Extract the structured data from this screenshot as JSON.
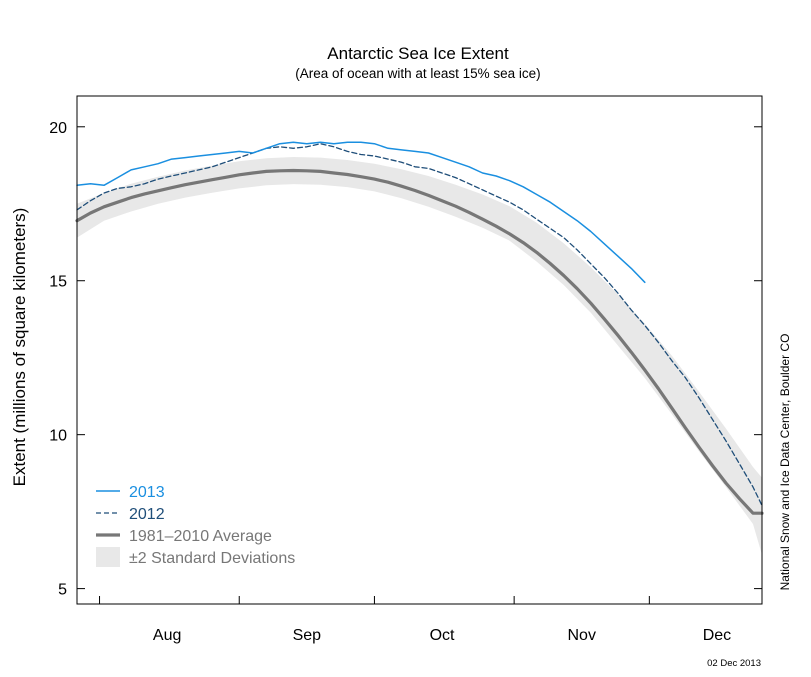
{
  "chart_data": {
    "type": "line",
    "title": "Antarctic Sea Ice Extent",
    "subtitle": "(Area of ocean with at least 15% sea ice)",
    "ylabel": "Extent (millions of square kilometers)",
    "xlabel": "",
    "ylim": [
      4.5,
      21
    ],
    "yticks": [
      5,
      10,
      15,
      20
    ],
    "ytick_labels": [
      "5",
      "10",
      "15",
      "20"
    ],
    "xlim": [
      "Jul 27",
      "Dec 26"
    ],
    "month_boundaries": [
      "Aug 1",
      "Sep 1",
      "Oct 1",
      "Nov 1",
      "Dec 1"
    ],
    "months": [
      {
        "label": "Aug",
        "center": "Aug 16"
      },
      {
        "label": "Sep",
        "center": "Sep 16"
      },
      {
        "label": "Oct",
        "center": "Oct 16"
      },
      {
        "label": "Nov",
        "center": "Nov 16"
      },
      {
        "label": "Dec",
        "center": "Dec 16"
      }
    ],
    "grid": false,
    "legend_position": "bottom-left",
    "series": [
      {
        "name": "2013",
        "color": "#1a8fe0",
        "style": "solid",
        "x": [
          "Jul 27",
          "Jul 30",
          "Aug 2",
          "Aug 5",
          "Aug 8",
          "Aug 11",
          "Aug 14",
          "Aug 17",
          "Aug 20",
          "Aug 23",
          "Aug 26",
          "Aug 29",
          "Sep 1",
          "Sep 4",
          "Sep 7",
          "Sep 10",
          "Sep 13",
          "Sep 16",
          "Sep 19",
          "Sep 22",
          "Sep 25",
          "Sep 28",
          "Oct 1",
          "Oct 4",
          "Oct 7",
          "Oct 10",
          "Oct 13",
          "Oct 16",
          "Oct 19",
          "Oct 22",
          "Oct 25",
          "Oct 28",
          "Oct 31",
          "Nov 3",
          "Nov 6",
          "Nov 9",
          "Nov 12",
          "Nov 15",
          "Nov 18",
          "Nov 21",
          "Nov 24",
          "Nov 27",
          "Nov 30"
        ],
        "values": [
          18.1,
          18.15,
          18.1,
          18.35,
          18.6,
          18.7,
          18.8,
          18.95,
          19.0,
          19.05,
          19.1,
          19.15,
          19.2,
          19.15,
          19.3,
          19.45,
          19.5,
          19.45,
          19.5,
          19.45,
          19.5,
          19.5,
          19.45,
          19.3,
          19.25,
          19.2,
          19.15,
          19.0,
          18.85,
          18.7,
          18.5,
          18.4,
          18.25,
          18.05,
          17.8,
          17.55,
          17.25,
          16.95,
          16.6,
          16.2,
          15.8,
          15.4,
          14.95
        ]
      },
      {
        "name": "2012",
        "color": "#1f4e79",
        "style": "dashed",
        "x": [
          "Jul 27",
          "Jul 30",
          "Aug 2",
          "Aug 5",
          "Aug 8",
          "Aug 11",
          "Aug 14",
          "Aug 17",
          "Aug 20",
          "Aug 23",
          "Aug 26",
          "Aug 29",
          "Sep 1",
          "Sep 4",
          "Sep 7",
          "Sep 10",
          "Sep 13",
          "Sep 16",
          "Sep 19",
          "Sep 22",
          "Sep 25",
          "Sep 28",
          "Oct 1",
          "Oct 4",
          "Oct 7",
          "Oct 10",
          "Oct 13",
          "Oct 16",
          "Oct 19",
          "Oct 22",
          "Oct 25",
          "Oct 28",
          "Oct 31",
          "Nov 3",
          "Nov 6",
          "Nov 9",
          "Nov 12",
          "Nov 15",
          "Nov 18",
          "Nov 21",
          "Nov 24",
          "Nov 27",
          "Nov 30",
          "Dec 3",
          "Dec 6",
          "Dec 9",
          "Dec 12",
          "Dec 15",
          "Dec 18",
          "Dec 21",
          "Dec 24",
          "Dec 26"
        ],
        "values": [
          17.3,
          17.6,
          17.85,
          18.0,
          18.05,
          18.15,
          18.3,
          18.4,
          18.5,
          18.6,
          18.7,
          18.85,
          19.0,
          19.15,
          19.3,
          19.35,
          19.3,
          19.35,
          19.45,
          19.35,
          19.2,
          19.1,
          19.05,
          18.95,
          18.85,
          18.7,
          18.65,
          18.5,
          18.35,
          18.15,
          17.95,
          17.75,
          17.55,
          17.3,
          17.0,
          16.7,
          16.4,
          16.0,
          15.55,
          15.1,
          14.6,
          14.05,
          13.55,
          13.0,
          12.4,
          11.85,
          11.2,
          10.5,
          9.8,
          9.05,
          8.3,
          7.7
        ]
      },
      {
        "name": "1981–2010 Average",
        "color": "#777777",
        "style": "solid-thick",
        "x": [
          "Jul 27",
          "Jul 30",
          "Aug 2",
          "Aug 5",
          "Aug 8",
          "Aug 11",
          "Aug 14",
          "Aug 17",
          "Aug 20",
          "Aug 23",
          "Aug 26",
          "Aug 29",
          "Sep 1",
          "Sep 4",
          "Sep 7",
          "Sep 10",
          "Sep 13",
          "Sep 16",
          "Sep 19",
          "Sep 22",
          "Sep 25",
          "Sep 28",
          "Oct 1",
          "Oct 4",
          "Oct 7",
          "Oct 10",
          "Oct 13",
          "Oct 16",
          "Oct 19",
          "Oct 22",
          "Oct 25",
          "Oct 28",
          "Oct 31",
          "Nov 3",
          "Nov 6",
          "Nov 9",
          "Nov 12",
          "Nov 15",
          "Nov 18",
          "Nov 21",
          "Nov 24",
          "Nov 27",
          "Nov 30",
          "Dec 3",
          "Dec 6",
          "Dec 9",
          "Dec 12",
          "Dec 15",
          "Dec 18",
          "Dec 21",
          "Dec 24",
          "Dec 26"
        ],
        "values": [
          16.95,
          17.2,
          17.4,
          17.55,
          17.7,
          17.82,
          17.92,
          18.02,
          18.12,
          18.2,
          18.28,
          18.36,
          18.44,
          18.5,
          18.55,
          18.57,
          18.58,
          18.57,
          18.55,
          18.5,
          18.45,
          18.38,
          18.3,
          18.2,
          18.07,
          17.93,
          17.77,
          17.6,
          17.42,
          17.22,
          17.0,
          16.77,
          16.52,
          16.24,
          15.92,
          15.56,
          15.17,
          14.74,
          14.27,
          13.76,
          13.23,
          12.68,
          12.1,
          11.5,
          10.86,
          10.22,
          9.6,
          9.0,
          8.43,
          7.92,
          7.45,
          7.45
        ]
      }
    ],
    "band": {
      "name": "±2 Standard Deviations",
      "color": "#e8e8e8",
      "x": [
        "Jul 27",
        "Aug 2",
        "Aug 8",
        "Aug 14",
        "Aug 20",
        "Aug 26",
        "Sep 1",
        "Sep 7",
        "Sep 13",
        "Sep 19",
        "Sep 25",
        "Oct 1",
        "Oct 7",
        "Oct 13",
        "Oct 19",
        "Oct 25",
        "Oct 31",
        "Nov 6",
        "Nov 12",
        "Nov 18",
        "Nov 24",
        "Nov 30",
        "Dec 6",
        "Dec 12",
        "Dec 18",
        "Dec 24",
        "Dec 26"
      ],
      "upper": [
        17.5,
        17.85,
        18.15,
        18.38,
        18.58,
        18.74,
        18.88,
        18.98,
        19.02,
        19.0,
        18.92,
        18.8,
        18.62,
        18.4,
        18.12,
        17.8,
        17.42,
        16.88,
        16.22,
        15.44,
        14.56,
        13.6,
        12.56,
        11.4,
        10.2,
        8.95,
        8.6
      ],
      "lower": [
        16.4,
        16.95,
        17.25,
        17.5,
        17.7,
        17.86,
        18.0,
        18.1,
        18.14,
        18.12,
        18.04,
        17.9,
        17.68,
        17.4,
        17.08,
        16.72,
        16.3,
        15.62,
        14.86,
        13.96,
        12.9,
        11.84,
        10.66,
        9.46,
        8.3,
        7.1,
        6.1
      ]
    },
    "legend": [
      {
        "label": "2013",
        "color": "#1a8fe0",
        "style": "solid"
      },
      {
        "label": "2012",
        "color": "#1f4e79",
        "style": "dashed"
      },
      {
        "label": "1981–2010 Average",
        "color": "#777777",
        "style": "solid-thick"
      },
      {
        "label": "±2 Standard Deviations",
        "color": "#e8e8e8",
        "style": "band"
      }
    ],
    "side_credit": "National Snow and Ice Data Center, Boulder CO",
    "date_stamp": "02 Dec 2013"
  }
}
